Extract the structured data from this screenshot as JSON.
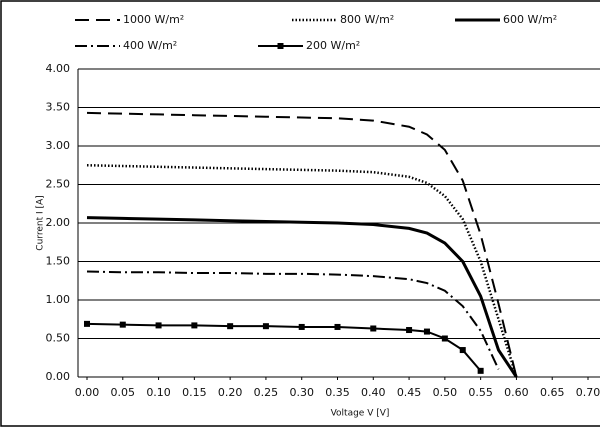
{
  "chart_data": {
    "type": "line",
    "x_label": "Voltage V  [V]",
    "y_label": "Current I  [A]",
    "x": [
      0,
      0.05,
      0.1,
      0.15,
      0.2,
      0.25,
      0.3,
      0.35,
      0.4,
      0.45,
      0.475,
      0.5,
      0.525,
      0.55,
      0.575,
      0.6
    ],
    "series": [
      {
        "name": "1000 W/m²",
        "color": "#000000",
        "dash": "14 7",
        "width": 2,
        "marker": false,
        "values": [
          3.43,
          3.42,
          3.41,
          3.4,
          3.39,
          3.38,
          3.37,
          3.36,
          3.33,
          3.25,
          3.15,
          2.95,
          2.55,
          1.85,
          0.95,
          0
        ]
      },
      {
        "name": "800 W/m²",
        "color": "#000000",
        "dash": "1.5 2",
        "width": 2.5,
        "marker": false,
        "values": [
          2.75,
          2.74,
          2.73,
          2.72,
          2.71,
          2.7,
          2.69,
          2.68,
          2.66,
          2.6,
          2.52,
          2.35,
          2.05,
          1.5,
          0.75,
          0
        ]
      },
      {
        "name": "600 W/m²",
        "color": "#000000",
        "dash": "none",
        "width": 3,
        "marker": false,
        "values": [
          2.07,
          2.06,
          2.05,
          2.04,
          2.03,
          2.02,
          2.01,
          2.0,
          1.98,
          1.93,
          1.87,
          1.74,
          1.5,
          1.05,
          0.35,
          0
        ]
      },
      {
        "name": "400 W/m²",
        "color": "#000000",
        "dash": "12 4 2 4",
        "width": 2,
        "marker": false,
        "values": [
          1.37,
          1.36,
          1.36,
          1.35,
          1.35,
          1.34,
          1.34,
          1.33,
          1.31,
          1.27,
          1.22,
          1.12,
          0.92,
          0.6,
          0.1,
          null
        ]
      },
      {
        "name": "200 W/m²",
        "color": "#000000",
        "dash": "none",
        "width": 2,
        "marker": true,
        "values": [
          0.69,
          0.68,
          0.67,
          0.67,
          0.66,
          0.66,
          0.65,
          0.65,
          0.63,
          0.61,
          0.59,
          0.5,
          0.35,
          0.08,
          null,
          null
        ]
      }
    ],
    "xlim": [
      0,
      0.7
    ],
    "xticks": [
      {
        "value": 0,
        "label": "0.00"
      },
      {
        "value": 0.05,
        "label": "0.05"
      },
      {
        "value": 0.1,
        "label": "0.10"
      },
      {
        "value": 0.15,
        "label": "0.15"
      },
      {
        "value": 0.2,
        "label": "0.20"
      },
      {
        "value": 0.25,
        "label": "0.25"
      },
      {
        "value": 0.3,
        "label": "0.30"
      },
      {
        "value": 0.35,
        "label": "0.35"
      },
      {
        "value": 0.4,
        "label": "0.40"
      },
      {
        "value": 0.45,
        "label": "0.45"
      },
      {
        "value": 0.5,
        "label": "0.50"
      },
      {
        "value": 0.55,
        "label": "0.55"
      },
      {
        "value": 0.6,
        "label": "0.60"
      },
      {
        "value": 0.65,
        "label": "0.65"
      },
      {
        "value": 0.7,
        "label": "0.70"
      }
    ],
    "ylim": [
      0,
      4
    ],
    "yticks": [
      {
        "value": 0,
        "label": "0.00"
      },
      {
        "value": 0.5,
        "label": "0.50"
      },
      {
        "value": 1,
        "label": "1.00"
      },
      {
        "value": 1.5,
        "label": "1.50"
      },
      {
        "value": 2,
        "label": "2.00"
      },
      {
        "value": 2.5,
        "label": "2.50"
      },
      {
        "value": 3,
        "label": "3.00"
      },
      {
        "value": 3.5,
        "label": "3.50"
      },
      {
        "value": 4,
        "label": "4.00"
      }
    ],
    "grid": true,
    "legend": "top"
  }
}
